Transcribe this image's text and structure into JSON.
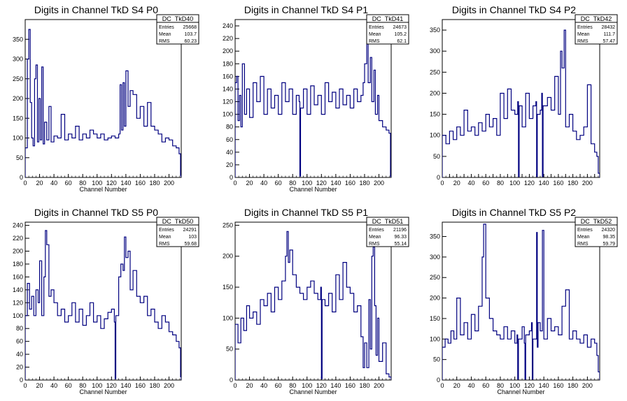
{
  "chart_data": [
    {
      "type": "line",
      "title": "Digits in Channel TkD S4 P0",
      "xlabel": "Channel Number",
      "ylabel": "",
      "xlim": [
        0,
        217
      ],
      "ylim": [
        0,
        400
      ],
      "x_ticks": [
        0,
        20,
        40,
        60,
        80,
        100,
        120,
        140,
        160,
        180,
        200
      ],
      "y_ticks": [
        0,
        50,
        100,
        150,
        200,
        250,
        300,
        350
      ],
      "stats": {
        "name": "DC_TkD40",
        "rows": [
          {
            "label": "Entries",
            "value": "25668"
          },
          {
            "label": "Mean",
            "value": "103.7"
          },
          {
            "label": "RMS",
            "value": "60.23"
          }
        ]
      },
      "series": [
        {
          "x": [
            0,
            3,
            5,
            7,
            9,
            11,
            13,
            15,
            17,
            19,
            21,
            23,
            25,
            27,
            30,
            33,
            36,
            40,
            45,
            50,
            55,
            60,
            65,
            70,
            75,
            80,
            85,
            90,
            95,
            100,
            105,
            110,
            115,
            120,
            125,
            130,
            132,
            134,
            136,
            138,
            140,
            143,
            146,
            150,
            155,
            160,
            165,
            170,
            175,
            180,
            185,
            190,
            195,
            200,
            205,
            210,
            214,
            216
          ],
          "y": [
            75,
            300,
            375,
            190,
            100,
            80,
            250,
            285,
            90,
            200,
            95,
            280,
            85,
            140,
            95,
            180,
            90,
            105,
            100,
            160,
            95,
            110,
            100,
            130,
            95,
            110,
            100,
            120,
            110,
            100,
            110,
            95,
            100,
            105,
            100,
            110,
            235,
            120,
            240,
            130,
            270,
            180,
            220,
            210,
            150,
            180,
            130,
            190,
            130,
            120,
            110,
            90,
            100,
            95,
            80,
            75,
            60,
            5
          ]
        }
      ]
    },
    {
      "type": "line",
      "title": "Digits in Channel TkD S4 P1",
      "xlabel": "Channel Number",
      "ylabel": "",
      "xlim": [
        0,
        217
      ],
      "ylim": [
        0,
        250
      ],
      "x_ticks": [
        0,
        20,
        40,
        60,
        80,
        100,
        120,
        140,
        160,
        180,
        200
      ],
      "y_ticks": [
        0,
        20,
        40,
        60,
        80,
        100,
        120,
        140,
        160,
        180,
        200,
        220,
        240
      ],
      "stats": {
        "name": "DC_TkD41",
        "rows": [
          {
            "label": "Entries",
            "value": "24673"
          },
          {
            "label": "Mean",
            "value": "105.2"
          },
          {
            "label": "RMS",
            "value": "62.1"
          }
        ]
      },
      "series": [
        {
          "x": [
            0,
            2,
            4,
            6,
            8,
            10,
            13,
            16,
            20,
            25,
            30,
            35,
            40,
            45,
            50,
            55,
            60,
            65,
            70,
            75,
            80,
            85,
            89,
            90,
            91,
            95,
            100,
            105,
            110,
            115,
            120,
            125,
            130,
            135,
            140,
            145,
            150,
            155,
            160,
            165,
            170,
            175,
            178,
            180,
            183,
            185,
            188,
            190,
            193,
            195,
            198,
            200,
            205,
            210,
            214,
            216,
            217
          ],
          "y": [
            150,
            160,
            90,
            130,
            80,
            180,
            100,
            140,
            95,
            150,
            120,
            160,
            100,
            140,
            110,
            130,
            100,
            150,
            120,
            140,
            100,
            130,
            120,
            2,
            110,
            140,
            100,
            145,
            115,
            130,
            100,
            150,
            120,
            135,
            110,
            140,
            115,
            130,
            110,
            140,
            120,
            130,
            150,
            180,
            215,
            150,
            190,
            120,
            170,
            100,
            130,
            90,
            80,
            75,
            70,
            2,
            0
          ]
        }
      ]
    },
    {
      "type": "line",
      "title": "Digits in Channel TkD S4 P2",
      "xlabel": "",
      "ylabel": "",
      "xlim": [
        0,
        217
      ],
      "ylim": [
        0,
        375
      ],
      "x_ticks": [
        0,
        10,
        20,
        30,
        40,
        50,
        60,
        70,
        80,
        90,
        100,
        110,
        120,
        130,
        140,
        150,
        160,
        170,
        180,
        190,
        200,
        210
      ],
      "x_tick_labels": [
        0,
        20,
        40,
        60,
        80,
        100,
        120,
        140,
        160,
        180,
        200
      ],
      "y_ticks": [
        0,
        50,
        100,
        150,
        200,
        250,
        300,
        350
      ],
      "stats": {
        "name": "DC_TkD42",
        "rows": [
          {
            "label": "Entries",
            "value": "28432"
          },
          {
            "label": "Mean",
            "value": "111.7"
          },
          {
            "label": "RMS",
            "value": "57.47"
          }
        ]
      },
      "series": [
        {
          "x": [
            0,
            5,
            10,
            15,
            20,
            25,
            30,
            35,
            40,
            45,
            50,
            55,
            60,
            65,
            70,
            75,
            80,
            85,
            90,
            95,
            100,
            104,
            105,
            106,
            110,
            115,
            120,
            125,
            129,
            130,
            131,
            135,
            137,
            138,
            139,
            145,
            150,
            155,
            160,
            163,
            165,
            168,
            170,
            175,
            180,
            185,
            190,
            195,
            200,
            205,
            210,
            213,
            215
          ],
          "y": [
            100,
            80,
            110,
            90,
            120,
            100,
            160,
            110,
            120,
            100,
            130,
            110,
            150,
            120,
            140,
            100,
            200,
            140,
            210,
            160,
            150,
            180,
            2,
            170,
            120,
            200,
            140,
            170,
            180,
            2,
            150,
            160,
            200,
            2,
            170,
            190,
            160,
            240,
            150,
            300,
            260,
            350,
            120,
            150,
            110,
            90,
            100,
            120,
            220,
            80,
            60,
            50,
            10
          ]
        }
      ]
    },
    {
      "type": "line",
      "title": "Digits in Channel TkD S5 P0",
      "xlabel": "Channel Number",
      "ylabel": "",
      "xlim": [
        0,
        217
      ],
      "ylim": [
        0,
        245
      ],
      "x_ticks": [
        0,
        20,
        40,
        60,
        80,
        100,
        120,
        140,
        160,
        180,
        200
      ],
      "y_ticks": [
        0,
        20,
        40,
        60,
        80,
        100,
        120,
        140,
        160,
        180,
        200,
        220,
        240
      ],
      "stats": {
        "name": "DC_TkD50",
        "rows": [
          {
            "label": "Entries",
            "value": "24291"
          },
          {
            "label": "Mean",
            "value": "103"
          },
          {
            "label": "RMS",
            "value": "59.68"
          }
        ]
      },
      "series": [
        {
          "x": [
            0,
            3,
            6,
            9,
            12,
            15,
            18,
            20,
            23,
            26,
            28,
            30,
            33,
            36,
            40,
            45,
            50,
            55,
            60,
            65,
            70,
            75,
            80,
            85,
            90,
            95,
            100,
            105,
            110,
            115,
            120,
            124,
            125,
            126,
            130,
            133,
            136,
            138,
            140,
            143,
            146,
            150,
            155,
            160,
            165,
            170,
            175,
            180,
            185,
            190,
            195,
            200,
            205,
            210,
            214,
            216,
            217
          ],
          "y": [
            100,
            150,
            110,
            130,
            100,
            140,
            120,
            185,
            100,
            160,
            232,
            210,
            130,
            140,
            120,
            100,
            110,
            90,
            100,
            120,
            90,
            110,
            85,
            100,
            120,
            90,
            100,
            80,
            95,
            105,
            110,
            90,
            2,
            100,
            160,
            180,
            170,
            222,
            190,
            200,
            140,
            170,
            130,
            120,
            130,
            100,
            110,
            90,
            80,
            100,
            90,
            75,
            70,
            60,
            50,
            5,
            0
          ]
        }
      ]
    },
    {
      "type": "line",
      "title": "Digits in Channel TkD S5 P1",
      "xlabel": "Channel Number",
      "ylabel": "",
      "xlim": [
        0,
        217
      ],
      "ylim": [
        0,
        255
      ],
      "x_ticks": [
        0,
        20,
        40,
        60,
        80,
        100,
        120,
        140,
        160,
        180,
        200
      ],
      "y_ticks": [
        0,
        50,
        100,
        150,
        200,
        250
      ],
      "stats": {
        "name": "DC_TkD51",
        "rows": [
          {
            "label": "Entries",
            "value": "21196"
          },
          {
            "label": "Mean",
            "value": "96.33"
          },
          {
            "label": "RMS",
            "value": "55.14"
          }
        ]
      },
      "series": [
        {
          "x": [
            0,
            4,
            8,
            12,
            16,
            20,
            25,
            30,
            35,
            40,
            45,
            50,
            55,
            60,
            65,
            70,
            72,
            74,
            76,
            80,
            85,
            90,
            95,
            100,
            105,
            110,
            115,
            119,
            120,
            121,
            125,
            130,
            135,
            140,
            145,
            150,
            155,
            160,
            165,
            170,
            175,
            178,
            180,
            183,
            186,
            188,
            190,
            192,
            194,
            196,
            198,
            200,
            205,
            210,
            214
          ],
          "y": [
            90,
            60,
            100,
            80,
            120,
            100,
            110,
            90,
            130,
            120,
            140,
            110,
            150,
            130,
            160,
            200,
            240,
            190,
            210,
            170,
            150,
            140,
            130,
            150,
            160,
            140,
            130,
            150,
            2,
            130,
            120,
            140,
            110,
            170,
            130,
            190,
            150,
            140,
            110,
            120,
            70,
            20,
            60,
            20,
            130,
            50,
            200,
            215,
            120,
            40,
            100,
            30,
            60,
            10,
            5
          ]
        }
      ]
    },
    {
      "type": "line",
      "title": "Digits in Channel TkD S5 P2",
      "xlabel": "Channel Number",
      "ylabel": "",
      "xlim": [
        0,
        217
      ],
      "ylim": [
        0,
        385
      ],
      "x_ticks": [
        0,
        20,
        40,
        60,
        80,
        100,
        120,
        140,
        160,
        180,
        200
      ],
      "y_ticks": [
        0,
        50,
        100,
        150,
        200,
        250,
        300,
        350
      ],
      "stats": {
        "name": "DC_TkD52",
        "rows": [
          {
            "label": "Entries",
            "value": "24320"
          },
          {
            "label": "Mean",
            "value": "98.35"
          },
          {
            "label": "RMS",
            "value": "59.79"
          }
        ]
      },
      "series": [
        {
          "x": [
            0,
            4,
            8,
            12,
            16,
            20,
            25,
            30,
            35,
            40,
            45,
            50,
            55,
            57,
            60,
            65,
            70,
            75,
            80,
            85,
            90,
            95,
            100,
            103,
            104,
            105,
            110,
            113,
            114,
            115,
            120,
            123,
            124,
            125,
            130,
            131,
            132,
            135,
            138,
            140,
            145,
            150,
            155,
            160,
            165,
            170,
            175,
            180,
            185,
            190,
            195,
            200,
            205,
            210,
            213,
            215
          ],
          "y": [
            80,
            100,
            90,
            120,
            100,
            200,
            110,
            140,
            100,
            160,
            120,
            180,
            300,
            380,
            200,
            150,
            120,
            110,
            100,
            130,
            100,
            120,
            90,
            110,
            2,
            100,
            130,
            90,
            2,
            110,
            120,
            140,
            2,
            100,
            360,
            80,
            140,
            120,
            365,
            100,
            150,
            120,
            130,
            110,
            180,
            220,
            100,
            120,
            100,
            90,
            110,
            80,
            100,
            90,
            60,
            20
          ]
        }
      ]
    }
  ]
}
